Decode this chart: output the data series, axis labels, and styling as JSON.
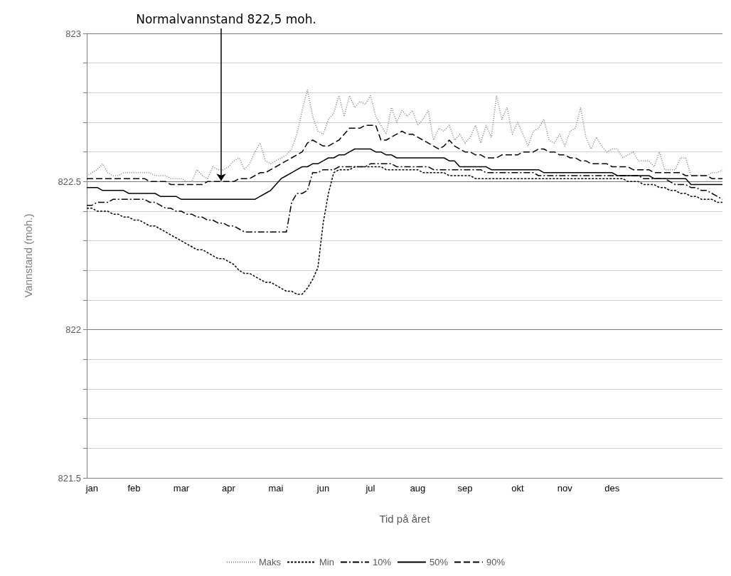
{
  "chart_data": {
    "type": "line",
    "xlabel": "Tid på året",
    "ylabel": "Vannstand (moh.)",
    "annotations": [
      {
        "text": "Normalvannstand 822,5 moh.",
        "y": 822.5
      }
    ],
    "categories": [
      null,
      "jan",
      null,
      null,
      null,
      null,
      null,
      null,
      null,
      "feb",
      null,
      null,
      null,
      null,
      null,
      null,
      null,
      null,
      "mar",
      null,
      null,
      null,
      null,
      null,
      null,
      null,
      null,
      "apr",
      null,
      null,
      null,
      null,
      null,
      null,
      null,
      null,
      "mai",
      null,
      null,
      null,
      null,
      null,
      null,
      null,
      null,
      "jun",
      null,
      null,
      null,
      null,
      null,
      null,
      null,
      null,
      "jul",
      null,
      null,
      null,
      null,
      null,
      null,
      null,
      null,
      "aug",
      null,
      null,
      null,
      null,
      null,
      null,
      null,
      null,
      "sep",
      null,
      null,
      null,
      null,
      null,
      null,
      null,
      null,
      null,
      "okt",
      null,
      null,
      null,
      null,
      null,
      null,
      null,
      null,
      "nov",
      null,
      null,
      null,
      null,
      null,
      null,
      null,
      null,
      "des",
      null,
      null,
      null,
      null,
      null,
      null,
      null,
      null,
      null,
      null,
      null,
      null,
      null,
      null,
      null,
      null,
      null,
      null,
      null,
      null,
      null
    ],
    "ylim": [
      821.5,
      823
    ],
    "yticks": [
      821.5,
      {
        "value": 821.6,
        "label": null
      },
      {
        "value": 821.7,
        "label": null
      },
      {
        "value": 821.8,
        "label": null
      },
      {
        "value": 821.9,
        "label": null
      },
      822,
      {
        "value": 822.1,
        "label": null
      },
      {
        "value": 822.2,
        "label": null
      },
      {
        "value": 822.3,
        "label": null
      },
      {
        "value": 822.4,
        "label": null
      },
      822.5,
      {
        "value": 822.6,
        "label": null
      },
      {
        "value": 822.7,
        "label": null
      },
      {
        "value": 822.8,
        "label": null
      },
      {
        "value": 822.9,
        "label": null
      },
      823
    ],
    "grid": "y",
    "legend": "bottom",
    "marker": "none",
    "series": [
      {
        "name": "Maks",
        "color": "#7f7f7f",
        "line_style": "dotted",
        "values": [
          822.52,
          822.53,
          822.54,
          822.56,
          822.53,
          822.52,
          822.52,
          822.53,
          822.53,
          822.53,
          822.53,
          822.53,
          822.53,
          822.52,
          822.52,
          822.52,
          822.51,
          822.51,
          822.51,
          822.5,
          822.5,
          822.54,
          822.52,
          822.51,
          822.55,
          822.54,
          822.54,
          822.55,
          822.57,
          822.58,
          822.54,
          822.56,
          822.6,
          822.63,
          822.57,
          822.56,
          822.57,
          822.58,
          822.59,
          822.61,
          822.66,
          822.74,
          822.81,
          822.72,
          822.67,
          822.66,
          822.71,
          822.73,
          822.79,
          822.72,
          822.79,
          822.75,
          822.77,
          822.76,
          822.79,
          822.72,
          822.69,
          822.66,
          822.75,
          822.7,
          822.74,
          822.72,
          822.74,
          822.69,
          822.71,
          822.74,
          822.64,
          822.68,
          822.67,
          822.69,
          822.64,
          822.66,
          822.63,
          822.65,
          822.69,
          822.63,
          822.69,
          822.65,
          822.79,
          822.71,
          822.75,
          822.66,
          822.7,
          822.66,
          822.62,
          822.67,
          822.68,
          822.71,
          822.64,
          822.63,
          822.66,
          822.62,
          822.67,
          822.68,
          822.75,
          822.65,
          822.61,
          822.65,
          822.62,
          822.6,
          822.61,
          822.61,
          822.58,
          822.59,
          822.6,
          822.57,
          822.57,
          822.57,
          822.55,
          822.6,
          822.54,
          822.54,
          822.54,
          822.58,
          822.58,
          822.52,
          822.52,
          822.52,
          822.52,
          822.53,
          822.53,
          822.54
        ]
      },
      {
        "name": "Min",
        "color": "#000000",
        "line_style": "dashed",
        "values": [
          822.41,
          822.41,
          822.4,
          822.4,
          822.4,
          822.39,
          822.39,
          822.38,
          822.38,
          822.37,
          822.37,
          822.36,
          822.35,
          822.35,
          822.34,
          822.33,
          822.32,
          822.31,
          822.3,
          822.29,
          822.28,
          822.27,
          822.27,
          822.26,
          822.25,
          822.24,
          822.24,
          822.23,
          822.22,
          822.2,
          822.19,
          822.19,
          822.18,
          822.17,
          822.16,
          822.16,
          822.15,
          822.14,
          822.13,
          822.13,
          822.12,
          822.12,
          822.14,
          822.17,
          822.21,
          822.36,
          822.46,
          822.53,
          822.54,
          822.54,
          822.54,
          822.55,
          822.55,
          822.55,
          822.55,
          822.55,
          822.55,
          822.54,
          822.54,
          822.54,
          822.54,
          822.54,
          822.54,
          822.54,
          822.53,
          822.53,
          822.53,
          822.53,
          822.53,
          822.52,
          822.52,
          822.52,
          822.52,
          822.52,
          822.51,
          822.51,
          822.51,
          822.51,
          822.51,
          822.51,
          822.51,
          822.51,
          822.51,
          822.51,
          822.51,
          822.51,
          822.51,
          822.51,
          822.51,
          822.51,
          822.51,
          822.51,
          822.51,
          822.51,
          822.51,
          822.51,
          822.51,
          822.51,
          822.51,
          822.51,
          822.51,
          822.51,
          822.51,
          822.5,
          822.5,
          822.5,
          822.49,
          822.49,
          822.49,
          822.48,
          822.48,
          822.47,
          822.47,
          822.46,
          822.46,
          822.45,
          822.45,
          822.44,
          822.44,
          822.44,
          822.43,
          822.43
        ]
      },
      {
        "name": "10%",
        "color": "#000000",
        "line_style": "dashdot",
        "values": [
          822.42,
          822.42,
          822.43,
          822.43,
          822.43,
          822.44,
          822.44,
          822.44,
          822.44,
          822.44,
          822.44,
          822.44,
          822.43,
          822.43,
          822.42,
          822.41,
          822.41,
          822.4,
          822.4,
          822.39,
          822.39,
          822.38,
          822.38,
          822.37,
          822.37,
          822.36,
          822.36,
          822.35,
          822.35,
          822.34,
          822.33,
          822.33,
          822.33,
          822.33,
          822.33,
          822.33,
          822.33,
          822.33,
          822.33,
          822.43,
          822.46,
          822.46,
          822.47,
          822.53,
          822.53,
          822.54,
          822.54,
          822.54,
          822.55,
          822.55,
          822.55,
          822.55,
          822.55,
          822.55,
          822.56,
          822.56,
          822.56,
          822.56,
          822.56,
          822.55,
          822.55,
          822.55,
          822.55,
          822.55,
          822.55,
          822.55,
          822.54,
          822.54,
          822.54,
          822.54,
          822.54,
          822.54,
          822.54,
          822.54,
          822.54,
          822.54,
          822.53,
          822.53,
          822.53,
          822.53,
          822.53,
          822.53,
          822.53,
          822.53,
          822.53,
          822.53,
          822.52,
          822.52,
          822.52,
          822.52,
          822.52,
          822.52,
          822.52,
          822.52,
          822.52,
          822.52,
          822.52,
          822.52,
          822.52,
          822.52,
          822.52,
          822.52,
          822.52,
          822.52,
          822.52,
          822.52,
          822.51,
          822.51,
          822.51,
          822.51,
          822.51,
          822.5,
          822.49,
          822.49,
          822.49,
          822.48,
          822.48,
          822.47,
          822.47,
          822.46,
          822.45,
          822.44
        ]
      },
      {
        "name": "50%",
        "color": "#000000",
        "line_style": "solid",
        "values": [
          822.48,
          822.48,
          822.48,
          822.47,
          822.47,
          822.47,
          822.47,
          822.47,
          822.46,
          822.46,
          822.46,
          822.46,
          822.46,
          822.46,
          822.45,
          822.45,
          822.45,
          822.45,
          822.44,
          822.44,
          822.44,
          822.44,
          822.44,
          822.44,
          822.44,
          822.44,
          822.44,
          822.44,
          822.44,
          822.44,
          822.44,
          822.44,
          822.44,
          822.45,
          822.46,
          822.47,
          822.49,
          822.51,
          822.52,
          822.53,
          822.54,
          822.55,
          822.55,
          822.56,
          822.56,
          822.57,
          822.58,
          822.58,
          822.59,
          822.59,
          822.6,
          822.61,
          822.61,
          822.61,
          822.61,
          822.6,
          822.6,
          822.59,
          822.59,
          822.58,
          822.58,
          822.58,
          822.58,
          822.58,
          822.58,
          822.58,
          822.58,
          822.58,
          822.58,
          822.57,
          822.57,
          822.55,
          822.55,
          822.55,
          822.55,
          822.55,
          822.55,
          822.54,
          822.54,
          822.54,
          822.54,
          822.54,
          822.54,
          822.54,
          822.54,
          822.54,
          822.54,
          822.53,
          822.53,
          822.53,
          822.53,
          822.53,
          822.53,
          822.53,
          822.53,
          822.53,
          822.53,
          822.53,
          822.53,
          822.53,
          822.53,
          822.52,
          822.52,
          822.52,
          822.52,
          822.52,
          822.52,
          822.52,
          822.51,
          822.51,
          822.51,
          822.51,
          822.51,
          822.51,
          822.51,
          822.49,
          822.49,
          822.49,
          822.49,
          822.49,
          822.49,
          822.49
        ]
      },
      {
        "name": "90%",
        "color": "#000000",
        "line_style": "longdash",
        "values": [
          822.51,
          822.51,
          822.51,
          822.51,
          822.51,
          822.51,
          822.51,
          822.51,
          822.51,
          822.51,
          822.51,
          822.51,
          822.5,
          822.5,
          822.5,
          822.5,
          822.49,
          822.49,
          822.49,
          822.49,
          822.49,
          822.49,
          822.49,
          822.5,
          822.5,
          822.5,
          822.5,
          822.5,
          822.5,
          822.51,
          822.51,
          822.51,
          822.52,
          822.53,
          822.53,
          822.54,
          822.55,
          822.56,
          822.57,
          822.58,
          822.59,
          822.6,
          822.63,
          822.64,
          822.63,
          822.62,
          822.62,
          822.63,
          822.64,
          822.66,
          822.68,
          822.68,
          822.68,
          822.69,
          822.69,
          822.69,
          822.64,
          822.64,
          822.65,
          822.66,
          822.67,
          822.66,
          822.66,
          822.65,
          822.64,
          822.63,
          822.62,
          822.61,
          822.62,
          822.64,
          822.62,
          822.61,
          822.6,
          822.6,
          822.59,
          822.59,
          822.58,
          822.58,
          822.58,
          822.59,
          822.59,
          822.59,
          822.59,
          822.6,
          822.6,
          822.6,
          822.61,
          822.61,
          822.6,
          822.6,
          822.59,
          822.59,
          822.58,
          822.58,
          822.57,
          822.57,
          822.56,
          822.56,
          822.56,
          822.56,
          822.55,
          822.55,
          822.55,
          822.55,
          822.54,
          822.54,
          822.54,
          822.54,
          822.53,
          822.53,
          822.53,
          822.53,
          822.53,
          822.53,
          822.52,
          822.52,
          822.52,
          822.52,
          822.52,
          822.51,
          822.51,
          822.51
        ]
      }
    ]
  }
}
